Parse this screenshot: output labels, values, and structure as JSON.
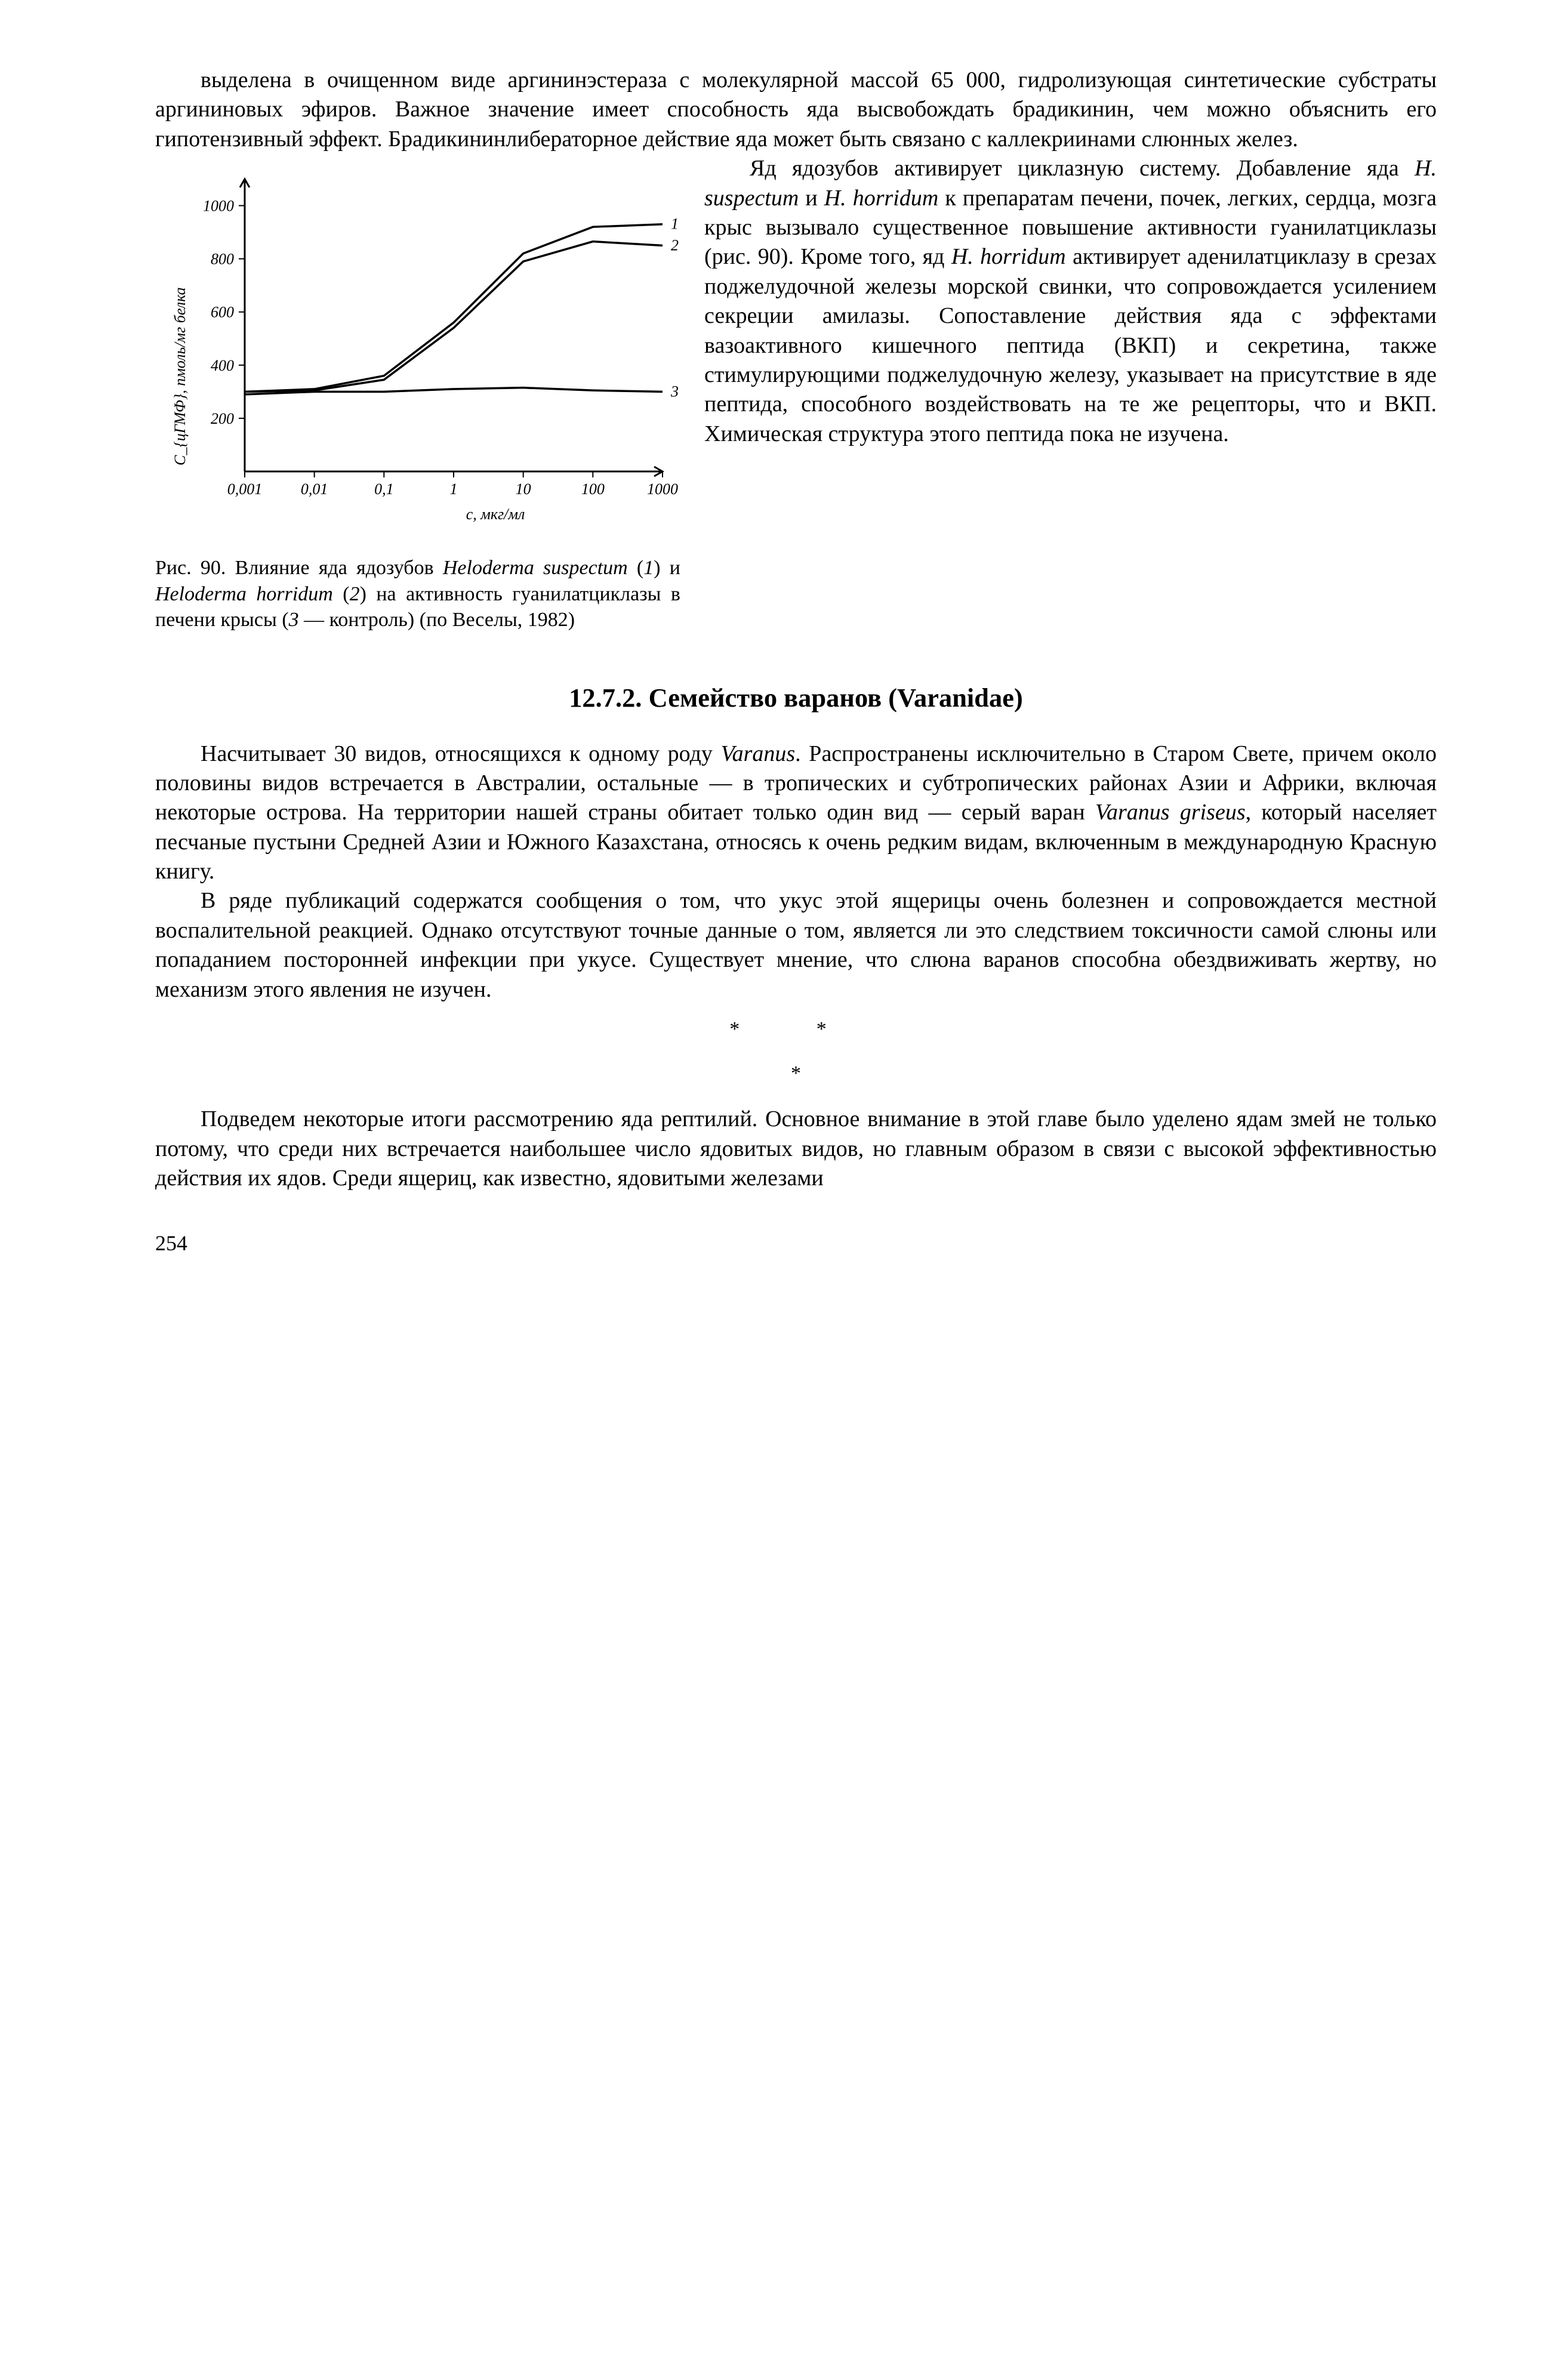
{
  "para1": "выделена в очищенном виде аргининэстераза с молекулярной массой 65 000, гидролизующая синтетические субстраты аргининовых эфиров. Важное значение имеет способность яда высвобождать брадикинин, чем можно объяснить его гипотензивный эффект. Брадикининлибераторное действие яда может быть связано с каллекриинами слюнных желез.",
  "para2a": "Яд ядозубов активирует циклазную систему. Добавление яда ",
  "para2b": "H. suspectum",
  "para2c": " и ",
  "para2d": "H. horridum",
  "para2e": " к препаратам печени, почек, легких, сердца, мозга крыс вызывало существенное повышение активности гуанилатциклазы (рис. 90). Кроме того, яд ",
  "para2f": "H. horridum",
  "para2g": " активирует аденилатциклазу в срезах поджелудочной железы морской свинки, что сопровождается усилением секреции амилазы. Сопоставление действия яда с эффектами вазоактивного кишечного пептида (ВКП) и секретина, также стимулирующими поджелудочную железу, указывает на присутствие в яде пептида, способного воздействовать на те же рецепторы, что и ВКП. Химическая структура этого пептида пока не изучена.",
  "caption_a": "Рис. 90. Влияние яда ядозубов ",
  "caption_b": "Heloderma suspectum",
  "caption_c": " (",
  "caption_d": "1",
  "caption_e": ") и ",
  "caption_f": "Heloderma horridum",
  "caption_g": " (",
  "caption_h": "2",
  "caption_i": ") на активность гуанилатциклазы в печени крысы (",
  "caption_j": "3",
  "caption_k": " — контроль) (по Веселы, 1982)",
  "section_title": "12.7.2. Семейство варанов (Varanidae)",
  "para3a": "Насчитывает 30 видов, относящихся к одному роду ",
  "para3b": "Varanus",
  "para3c": ". Распространены исключительно в Старом Свете, причем около половины видов встречается в Австралии, остальные — в тропических и субтропических районах Азии и Африки, включая некоторые острова. На территории нашей страны обитает только один вид — серый варан ",
  "para3d": "Varanus griseus",
  "para3e": ", который населяет песчаные пустыни Средней Азии и Южного Казахстана, относясь к очень редким видам, включенным в международную Красную книгу.",
  "para4": "В ряде публикаций содержатся сообщения о том, что укус этой ящерицы очень болезнен и сопровождается местной воспалительной реакцией. Однако отсутствуют точные данные о том, является ли это следствием токсичности самой слюны или попаданием посторонней инфекции при укусе. Существует мнение, что слюна варанов способна обездвиживать жертву, но механизм этого явления не изучен.",
  "para5": "Подведем некоторые итоги рассмотрению яда рептилий. Основное внимание в этой главе было уделено ядам змей не только потому, что среди них встречается наибольшее число ядовитых видов, но главным образом в связи с высокой эффективностью действия их ядов. Среди ящериц, как известно, ядовитыми железами",
  "page_number": "254",
  "chart": {
    "type": "line",
    "ylabel": "С_{цГМФ}, пмоль/мг белка",
    "xlabel": "с, мкг/мл",
    "ylim": [
      0,
      1100
    ],
    "xticks_labels": [
      "0,001",
      "0,01",
      "0,1",
      "1",
      "10",
      "100",
      "1000"
    ],
    "yticks": [
      200,
      400,
      600,
      800,
      1000
    ],
    "series": [
      {
        "label": "1",
        "x": [
          0,
          1,
          2,
          3,
          4,
          5,
          6
        ],
        "y": [
          300,
          310,
          360,
          560,
          820,
          920,
          930
        ]
      },
      {
        "label": "2",
        "x": [
          0,
          1,
          2,
          3,
          4,
          5,
          6
        ],
        "y": [
          300,
          305,
          345,
          540,
          790,
          865,
          850
        ]
      },
      {
        "label": "3",
        "x": [
          0,
          1,
          2,
          3,
          4,
          5,
          6
        ],
        "y": [
          290,
          300,
          300,
          310,
          315,
          305,
          300
        ]
      }
    ],
    "line_color": "#000000",
    "line_width": 3.5,
    "tick_font_size": 26
  }
}
